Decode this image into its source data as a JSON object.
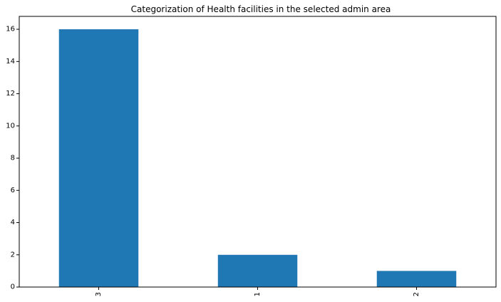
{
  "chart_data": {
    "type": "bar",
    "title": "Categorization of Health facilities in the selected admin area",
    "xlabel": "",
    "ylabel": "",
    "categories": [
      "3",
      "1",
      "2"
    ],
    "values": [
      16,
      2,
      1
    ],
    "ylim": [
      0,
      16.8
    ],
    "yticks": [
      0,
      2,
      4,
      6,
      8,
      10,
      12,
      14,
      16
    ],
    "x_tick_rotation": "vertical",
    "grid": false,
    "legend": "none",
    "bar_color": "#1f77b4"
  }
}
